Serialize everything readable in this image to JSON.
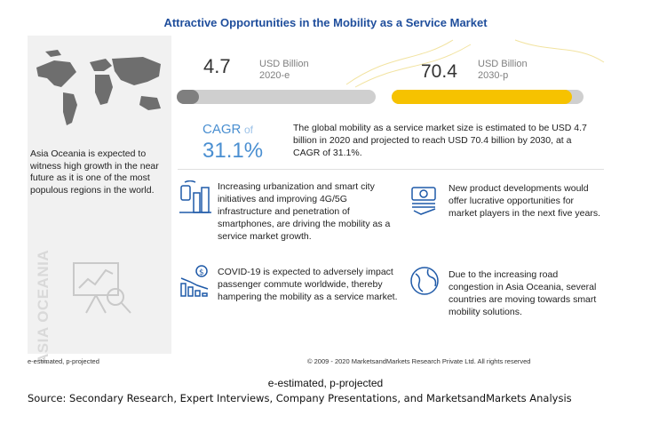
{
  "title": "Attractive Opportunities in the Mobility as a Service Market",
  "left_panel": {
    "text": "Asia Oceania is expected to witness high growth in the near future as it is one of the most populous regions in the world.",
    "vertical_label": "ASIA OCEANIA",
    "icons": [
      "world-map-icon",
      "presentation-chart-icon"
    ]
  },
  "stats": {
    "start": {
      "value": "4.7",
      "unit": "USD Billion",
      "year": "2020-e",
      "fill_fraction": 0.11,
      "color": "#7f7f7f"
    },
    "end": {
      "value": "70.4",
      "unit": "USD Billion",
      "year": "2030-p",
      "fill_fraction": 0.94,
      "color": "#f6c200"
    }
  },
  "cagr": {
    "label": "CAGR",
    "of": "of",
    "value": "31.1%",
    "color": "#4a8fd1"
  },
  "summary": "The global mobility as a service market size is estimated to be USD 4.7 billion in 2020 and projected to reach USD 70.4 billion by 2030, at a CAGR of 31.1%.",
  "drivers": [
    {
      "icon": "smart-city-icon",
      "text": "Increasing urbanization and smart city initiatives and improving 4G/5G infrastructure and penetration of smartphones, are driving the mobility as a service market growth."
    },
    {
      "icon": "money-stack-icon",
      "text": "New product developments would offer lucrative opportunities for market players in the next five years."
    },
    {
      "icon": "dollar-decline-chart-icon",
      "text": "COVID-19 is expected to adversely impact passenger commute worldwide, thereby hampering the mobility as a service market."
    },
    {
      "icon": "globe-icon",
      "text": "Due to the increasing road congestion in Asia Oceania, several countries are moving towards smart mobility solutions."
    }
  ],
  "footnotes": {
    "left": "e-estimated, p-projected",
    "right": "© 2009 - 2020 MarketsandMarkets Research Private Ltd. All rights reserved"
  },
  "caption": "e-estimated, p-projected",
  "source": "Source: Secondary Research, Expert Interviews, Company Presentations, and MarketsandMarkets Analysis"
}
